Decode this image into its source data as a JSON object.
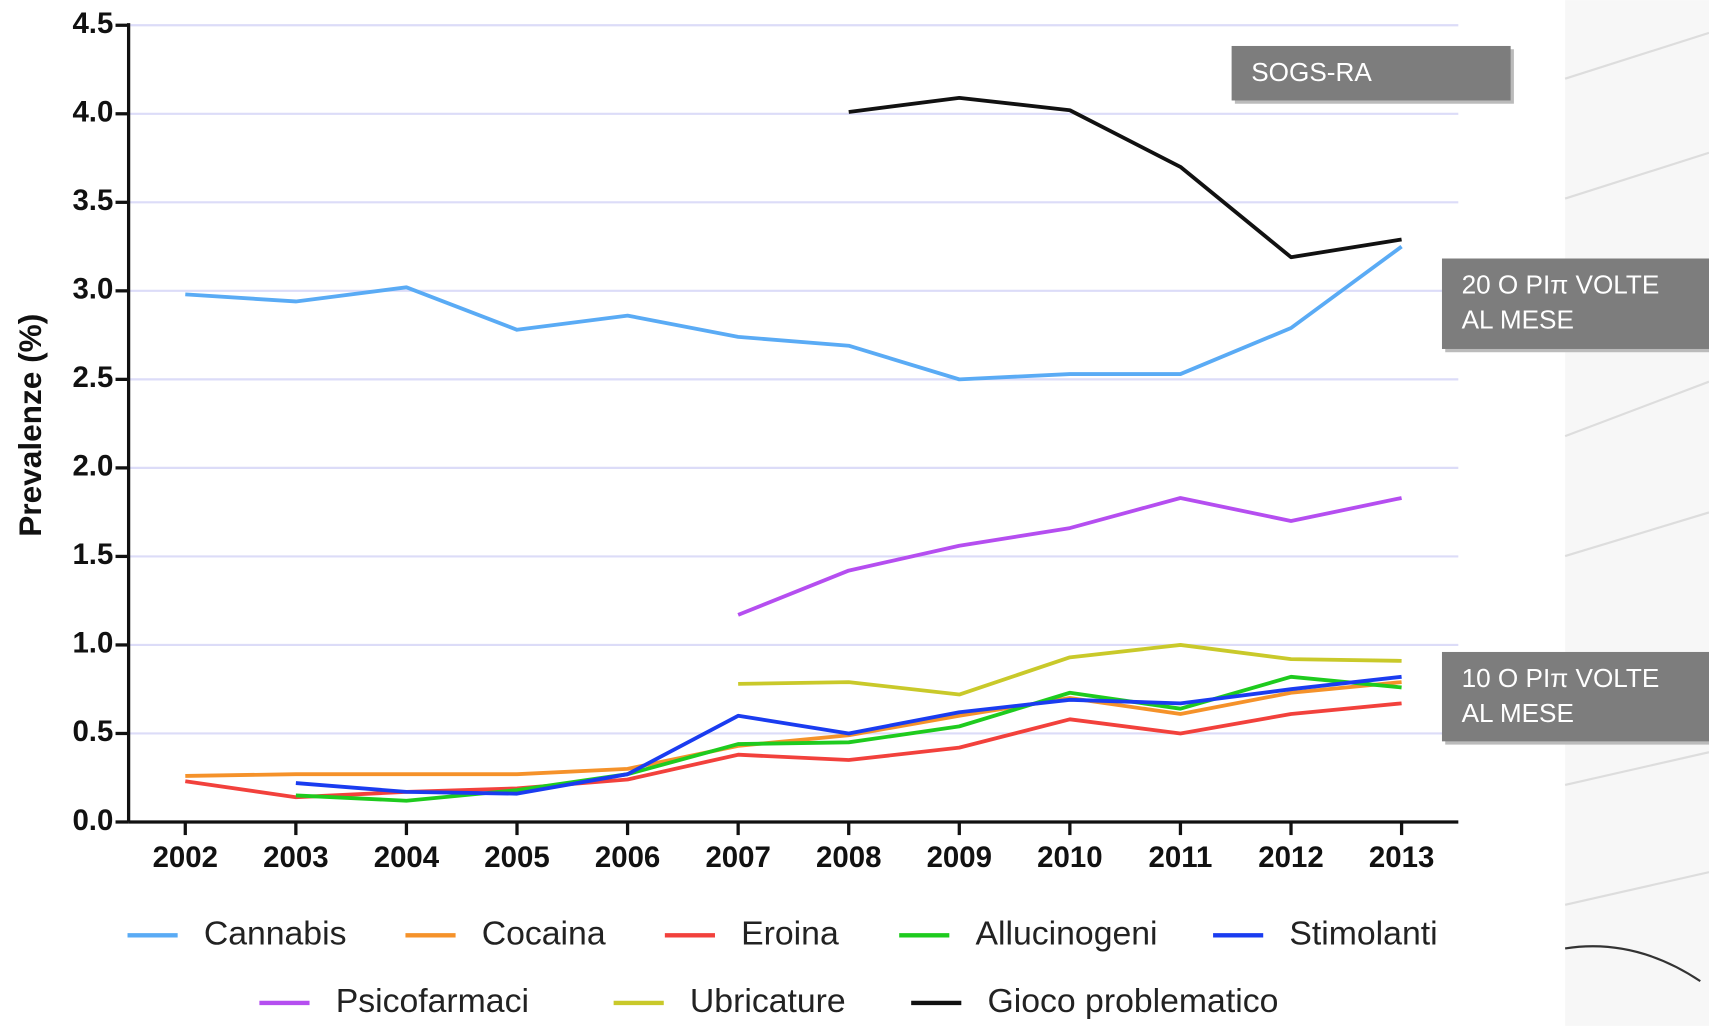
{
  "chart_data": {
    "type": "line",
    "y_label": "Prevalenze (%)",
    "categories": [
      "2002",
      "2003",
      "2004",
      "2005",
      "2006",
      "2007",
      "2008",
      "2009",
      "2010",
      "2011",
      "2012",
      "2013"
    ],
    "ylim": [
      0,
      4.5
    ],
    "yticks": [
      {
        "value": 0,
        "label": "0.0"
      },
      0.5,
      {
        "value": 1,
        "label": "1.0"
      },
      1.5,
      {
        "value": 2,
        "label": "2.0"
      },
      2.5,
      {
        "value": 3,
        "label": "3.0"
      },
      3.5,
      {
        "value": 4,
        "label": "4.0"
      },
      4.5
    ],
    "grid": true,
    "series": [
      {
        "name": "Cannabis",
        "color": "#5aabf5",
        "values": [
          2.98,
          2.94,
          3.02,
          2.78,
          2.86,
          2.74,
          2.69,
          2.5,
          2.53,
          2.53,
          2.79,
          3.25
        ]
      },
      {
        "name": "Cocaina",
        "color": "#f5922a",
        "values": [
          0.26,
          0.27,
          0.27,
          0.27,
          0.3,
          0.43,
          0.49,
          0.6,
          0.7,
          0.61,
          0.73,
          0.79
        ]
      },
      {
        "name": "Eroina",
        "color": "#f2413c",
        "values": [
          0.23,
          0.14,
          0.17,
          0.19,
          0.24,
          0.38,
          0.35,
          0.42,
          0.58,
          0.5,
          0.61,
          0.67
        ]
      },
      {
        "name": "Allucinogeni",
        "color": "#1ecb1e",
        "values": [
          null,
          0.15,
          0.12,
          0.18,
          0.27,
          0.44,
          0.45,
          0.54,
          0.73,
          0.64,
          0.82,
          0.76
        ]
      },
      {
        "name": "Stimolanti",
        "color": "#1a3cf0",
        "values": [
          null,
          0.22,
          0.17,
          0.16,
          0.27,
          0.6,
          0.5,
          0.62,
          0.69,
          0.67,
          0.75,
          0.82
        ]
      },
      {
        "name": "Psicofarmaci",
        "color": "#b54ef0",
        "values": [
          null,
          null,
          null,
          null,
          null,
          1.17,
          1.42,
          1.56,
          1.66,
          1.83,
          1.7,
          1.83
        ]
      },
      {
        "name": "Ubricature",
        "color": "#c9c92a",
        "values": [
          null,
          null,
          null,
          null,
          null,
          0.78,
          0.79,
          0.72,
          0.93,
          1.0,
          0.92,
          0.91
        ]
      },
      {
        "name": "Gioco problematico",
        "color": "#111111",
        "values": [
          null,
          null,
          null,
          null,
          null,
          null,
          4.01,
          4.09,
          4.02,
          3.7,
          3.19,
          3.29
        ]
      }
    ],
    "annotations": [
      [
        "SOGS-RA"
      ],
      [
        "20 O PIπ VOLTE",
        "AL MESE"
      ],
      [
        "10 O PIπ VOLTE",
        "AL MESE"
      ]
    ]
  }
}
